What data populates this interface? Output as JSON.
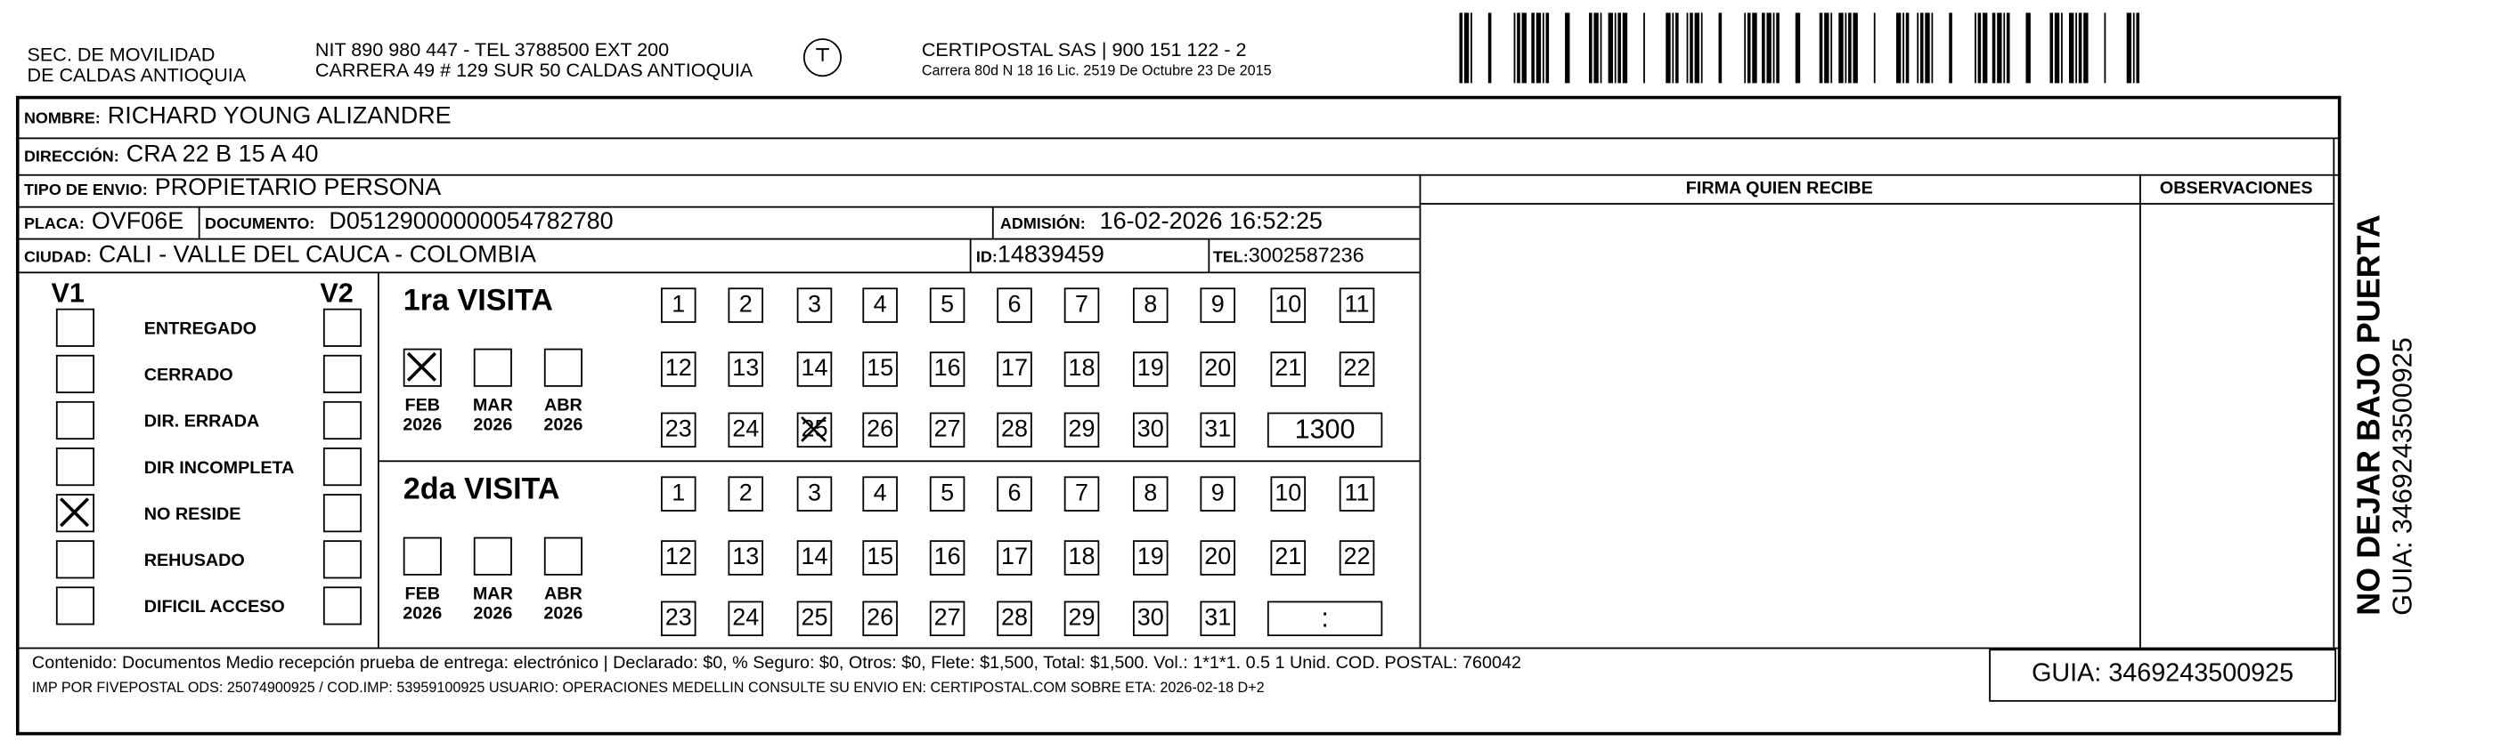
{
  "header": {
    "sender_line1": "SEC. DE MOVILIDAD",
    "sender_line2": "DE CALDAS ANTIOQUIA",
    "nit_line": "NIT 890 980 447 - TEL 3788500 EXT 200",
    "address_line": "CARRERA 49 # 129 SUR 50  CALDAS ANTIOQUIA",
    "logo_text": "CERTIPOSTAL",
    "company_line": "CERTIPOSTAL SAS | 900 151 122 - 2",
    "license_line": "Carrera 80d N 18 16  Lic. 2519 De Octubre 23 De 2015",
    "barcode_value": "3469243500925"
  },
  "fields": {
    "nombre_label": "NOMBRE:",
    "nombre": "RICHARD YOUNG ALIZANDRE",
    "direccion_label": "DIRECCIÓN:",
    "direccion": "CRA 22 B  15 A 40",
    "tipo_label": "TIPO DE ENVIO:",
    "tipo": "PROPIETARIO PERSONA",
    "placa_label": "PLACA:",
    "placa": "OVF06E",
    "documento_label": "DOCUMENTO:",
    "documento": "D05129000000054782780",
    "admision_label": "ADMISIÓN:",
    "admision": "16-02-2026 16:52:25",
    "ciudad_label": "CIUDAD:",
    "ciudad": "CALI - VALLE DEL CAUCA - COLOMBIA",
    "id_label": "ID:",
    "id": "14839459",
    "tel_label": "TEL:",
    "tel": "3002587236"
  },
  "columns": {
    "firma": "FIRMA QUIEN RECIBE",
    "observaciones": "OBSERVACIONES"
  },
  "status": {
    "v1": "V1",
    "v2": "V2",
    "items": [
      {
        "label": "ENTREGADO",
        "v1": false
      },
      {
        "label": "CERRADO",
        "v1": false
      },
      {
        "label": "DIR. ERRADA",
        "v1": false
      },
      {
        "label": "DIR INCOMPLETA",
        "v1": false
      },
      {
        "label": "NO RESIDE",
        "v1": true
      },
      {
        "label": "REHUSADO",
        "v1": false
      },
      {
        "label": "DIFICIL ACCESO",
        "v1": false
      }
    ]
  },
  "visits": [
    {
      "title": "1ra VISITA",
      "months": [
        {
          "m": "FEB",
          "y": "2026",
          "checked": true
        },
        {
          "m": "MAR",
          "y": "2026",
          "checked": false
        },
        {
          "m": "ABR",
          "y": "2026",
          "checked": false
        }
      ],
      "checked_day": 25,
      "time": "1300"
    },
    {
      "title": "2da VISITA",
      "months": [
        {
          "m": "FEB",
          "y": "2026",
          "checked": false
        },
        {
          "m": "MAR",
          "y": "2026",
          "checked": false
        },
        {
          "m": "ABR",
          "y": "2026",
          "checked": false
        }
      ],
      "checked_day": null,
      "time": ":"
    }
  ],
  "footer": {
    "contenido": "Contenido: Documentos Medio recepción prueba de entrega: electrónico | Declarado: $0, % Seguro: $0, Otros: $0, Flete: $1,500, Total: $1,500. Vol.: 1*1*1. 0.5  1 Unid. COD. POSTAL: 760042",
    "imp": "IMP POR FIVEPOSTAL ODS: 25074900925 / COD.IMP: 53959100925 USUARIO: OPERACIONES MEDELLIN CONSULTE SU ENVIO EN: CERTIPOSTAL.COM SOBRE ETA: 2026-02-18 D+2",
    "guia": "GUIA: 3469243500925"
  },
  "side": {
    "warning": "NO DEJAR BAJO PUERTA",
    "guia": "GUIA: 3469243500925"
  }
}
